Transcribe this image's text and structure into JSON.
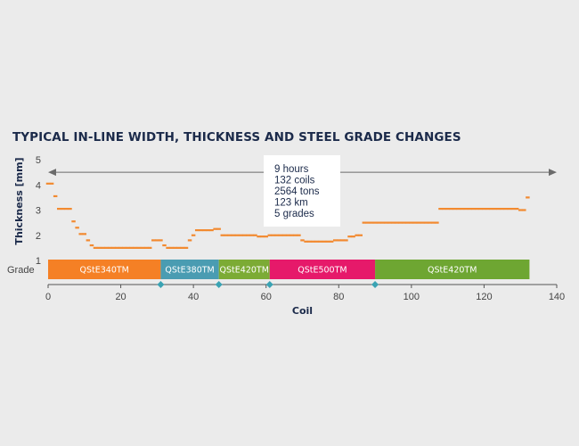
{
  "chart_data": {
    "type": "line",
    "title": "TYPICAL IN-LINE WIDTH, THICKNESS AND STEEL GRADE CHANGES",
    "xlabel": "Coil",
    "ylabel": "Thickness [mm]",
    "grade_label": "Grade",
    "xlim": [
      0,
      140
    ],
    "ylim": [
      1,
      5
    ],
    "x_ticks": [
      "0",
      "20",
      "40",
      "60",
      "80",
      "100",
      "120",
      "140"
    ],
    "y_ticks": [
      "1",
      "2",
      "3",
      "4",
      "5"
    ],
    "colors": {
      "thickness": "#f28a30",
      "axis": "#555555",
      "marker": "#3aa3b3"
    },
    "series": [
      {
        "points": [
          [
            0,
            4.05
          ],
          [
            1,
            4.05
          ],
          [
            2,
            3.55
          ],
          [
            3,
            3.05
          ],
          [
            4,
            3.05
          ],
          [
            5,
            3.05
          ],
          [
            6,
            3.05
          ],
          [
            7,
            2.55
          ],
          [
            8,
            2.3
          ],
          [
            9,
            2.05
          ],
          [
            10,
            2.05
          ],
          [
            11,
            1.8
          ],
          [
            12,
            1.6
          ],
          [
            13,
            1.5
          ],
          [
            14,
            1.5
          ],
          [
            15,
            1.5
          ],
          [
            16,
            1.5
          ],
          [
            17,
            1.5
          ],
          [
            18,
            1.5
          ],
          [
            19,
            1.5
          ],
          [
            20,
            1.5
          ],
          [
            21,
            1.5
          ],
          [
            22,
            1.5
          ],
          [
            23,
            1.5
          ],
          [
            24,
            1.5
          ],
          [
            25,
            1.5
          ],
          [
            26,
            1.5
          ],
          [
            27,
            1.5
          ],
          [
            28,
            1.5
          ],
          [
            29,
            1.8
          ],
          [
            30,
            1.8
          ],
          [
            31,
            1.8
          ],
          [
            32,
            1.6
          ],
          [
            33,
            1.5
          ],
          [
            34,
            1.5
          ],
          [
            35,
            1.5
          ],
          [
            36,
            1.5
          ],
          [
            37,
            1.5
          ],
          [
            38,
            1.5
          ],
          [
            39,
            1.8
          ],
          [
            40,
            2.0
          ],
          [
            41,
            2.2
          ],
          [
            42,
            2.2
          ],
          [
            43,
            2.2
          ],
          [
            44,
            2.2
          ],
          [
            45,
            2.2
          ],
          [
            46,
            2.25
          ],
          [
            47,
            2.25
          ],
          [
            48,
            2.0
          ],
          [
            49,
            2.0
          ],
          [
            50,
            2.0
          ],
          [
            51,
            2.0
          ],
          [
            52,
            2.0
          ],
          [
            53,
            2.0
          ],
          [
            54,
            2.0
          ],
          [
            55,
            2.0
          ],
          [
            56,
            2.0
          ],
          [
            57,
            2.0
          ],
          [
            58,
            1.95
          ],
          [
            59,
            1.95
          ],
          [
            60,
            1.95
          ],
          [
            61,
            2.0
          ],
          [
            62,
            2.0
          ],
          [
            63,
            2.0
          ],
          [
            64,
            2.0
          ],
          [
            65,
            2.0
          ],
          [
            66,
            2.0
          ],
          [
            67,
            2.0
          ],
          [
            68,
            2.0
          ],
          [
            69,
            2.0
          ],
          [
            70,
            1.8
          ],
          [
            71,
            1.75
          ],
          [
            72,
            1.75
          ],
          [
            73,
            1.75
          ],
          [
            74,
            1.75
          ],
          [
            75,
            1.75
          ],
          [
            76,
            1.75
          ],
          [
            77,
            1.75
          ],
          [
            78,
            1.75
          ],
          [
            79,
            1.8
          ],
          [
            80,
            1.8
          ],
          [
            81,
            1.8
          ],
          [
            82,
            1.8
          ],
          [
            83,
            1.95
          ],
          [
            84,
            1.95
          ],
          [
            85,
            2.0
          ],
          [
            86,
            2.0
          ],
          [
            87,
            2.5
          ],
          [
            88,
            2.5
          ],
          [
            89,
            2.5
          ],
          [
            90,
            2.5
          ],
          [
            91,
            2.5
          ],
          [
            92,
            2.5
          ],
          [
            93,
            2.5
          ],
          [
            94,
            2.5
          ],
          [
            95,
            2.5
          ],
          [
            96,
            2.5
          ],
          [
            97,
            2.5
          ],
          [
            98,
            2.5
          ],
          [
            99,
            2.5
          ],
          [
            100,
            2.5
          ],
          [
            101,
            2.5
          ],
          [
            102,
            2.5
          ],
          [
            103,
            2.5
          ],
          [
            104,
            2.5
          ],
          [
            105,
            2.5
          ],
          [
            106,
            2.5
          ],
          [
            107,
            2.5
          ],
          [
            108,
            3.05
          ],
          [
            109,
            3.05
          ],
          [
            110,
            3.05
          ],
          [
            111,
            3.05
          ],
          [
            112,
            3.05
          ],
          [
            113,
            3.05
          ],
          [
            114,
            3.05
          ],
          [
            115,
            3.05
          ],
          [
            116,
            3.05
          ],
          [
            117,
            3.05
          ],
          [
            118,
            3.05
          ],
          [
            119,
            3.05
          ],
          [
            120,
            3.05
          ],
          [
            121,
            3.05
          ],
          [
            122,
            3.05
          ],
          [
            123,
            3.05
          ],
          [
            124,
            3.05
          ],
          [
            125,
            3.05
          ],
          [
            126,
            3.05
          ],
          [
            127,
            3.05
          ],
          [
            128,
            3.05
          ],
          [
            129,
            3.05
          ],
          [
            130,
            3.0
          ],
          [
            131,
            3.0
          ],
          [
            132,
            3.5
          ]
        ]
      }
    ],
    "grades": [
      {
        "label": "QStE340TM",
        "start": 0,
        "end": 31,
        "color": "#f58025"
      },
      {
        "label": "QStE380TM",
        "start": 31,
        "end": 47,
        "color": "#4a9cb2"
      },
      {
        "label": "QStE420TM",
        "start": 47,
        "end": 61,
        "color": "#7cab35"
      },
      {
        "label": "QStE500TM",
        "start": 61,
        "end": 90,
        "color": "#e6196a"
      },
      {
        "label": "QStE420TM",
        "start": 90,
        "end": 132.5,
        "color": "#6ea632"
      }
    ],
    "grade_change_markers": [
      31,
      47,
      61,
      90
    ],
    "range_arrow": {
      "from": 0,
      "to": 140,
      "y": 4.5
    },
    "info_box": [
      "9 hours",
      "132 coils",
      "2564 tons",
      "123 km",
      "5 grades"
    ]
  }
}
